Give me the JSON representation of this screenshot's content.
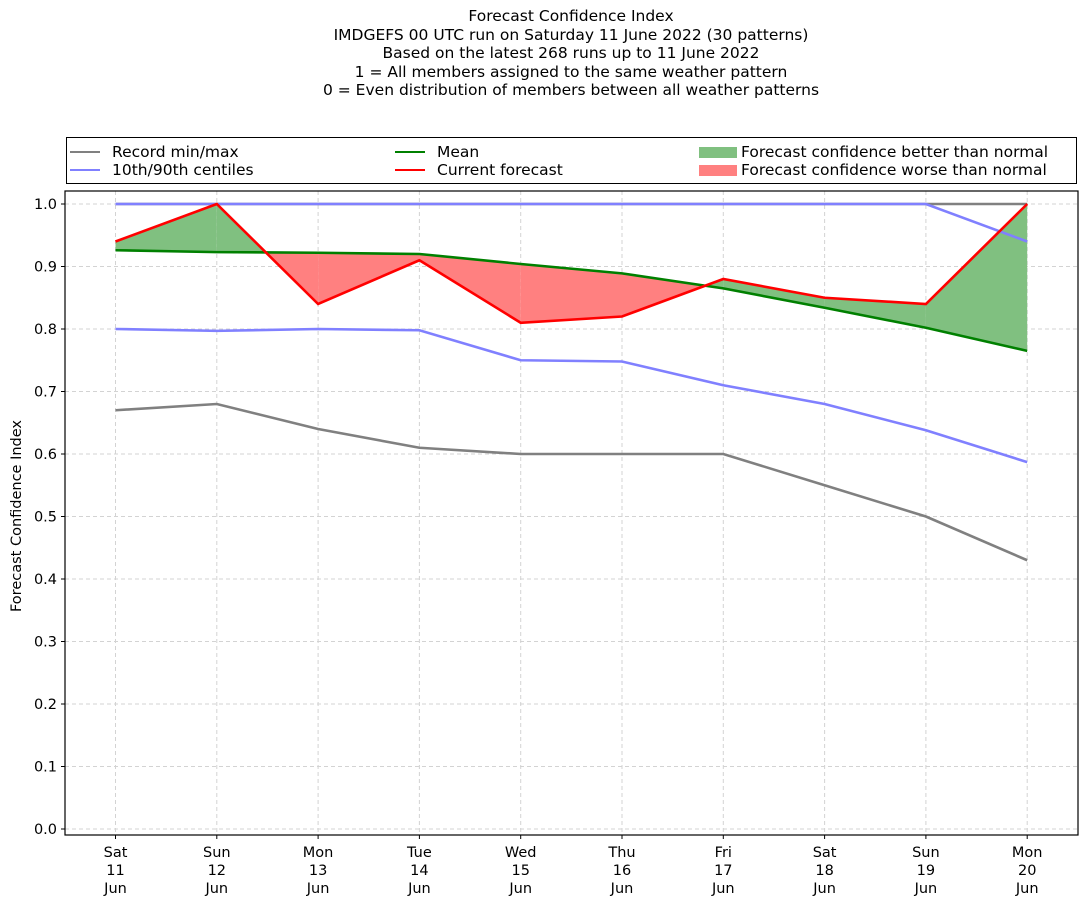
{
  "chart_data": {
    "type": "line",
    "title_lines": [
      "Forecast Confidence Index",
      "IMDGEFS 00 UTC run on Saturday 11 June 2022 (30 patterns)",
      "Based on the latest 268 runs up to 11 June 2022",
      "1 = All members assigned to the same weather pattern",
      "0 = Even distribution of members between all weather patterns"
    ],
    "xlabel": "",
    "ylabel": "Forecast Confidence Index",
    "ylim": [
      0.0,
      1.0
    ],
    "yticks": [
      "0.0",
      "0.1",
      "0.2",
      "0.3",
      "0.4",
      "0.5",
      "0.6",
      "0.7",
      "0.8",
      "0.9",
      "1.0"
    ],
    "grid": true,
    "legend_position": "top (above plot, 3 columns)",
    "categories": [
      {
        "day": "Sat",
        "date": "11",
        "month": "Jun"
      },
      {
        "day": "Sun",
        "date": "12",
        "month": "Jun"
      },
      {
        "day": "Mon",
        "date": "13",
        "month": "Jun"
      },
      {
        "day": "Tue",
        "date": "14",
        "month": "Jun"
      },
      {
        "day": "Wed",
        "date": "15",
        "month": "Jun"
      },
      {
        "day": "Thu",
        "date": "16",
        "month": "Jun"
      },
      {
        "day": "Fri",
        "date": "17",
        "month": "Jun"
      },
      {
        "day": "Sat",
        "date": "18",
        "month": "Jun"
      },
      {
        "day": "Sun",
        "date": "19",
        "month": "Jun"
      },
      {
        "day": "Mon",
        "date": "20",
        "month": "Jun"
      }
    ],
    "series": [
      {
        "name": "Record max",
        "legend_group": "Record min/max",
        "color": "#808080",
        "values": [
          1.0,
          1.0,
          1.0,
          1.0,
          1.0,
          1.0,
          1.0,
          1.0,
          1.0,
          1.0
        ]
      },
      {
        "name": "Record min",
        "legend_group": "Record min/max",
        "color": "#808080",
        "values": [
          0.67,
          0.68,
          0.64,
          0.61,
          0.6,
          0.6,
          0.6,
          0.55,
          0.5,
          0.43
        ]
      },
      {
        "name": "90th centile",
        "legend_group": "10th/90th centiles",
        "color": "#8080ff",
        "values": [
          1.0,
          1.0,
          1.0,
          1.0,
          1.0,
          1.0,
          1.0,
          1.0,
          1.0,
          0.94
        ]
      },
      {
        "name": "10th centile",
        "legend_group": "10th/90th centiles",
        "color": "#8080ff",
        "values": [
          0.8,
          0.797,
          0.8,
          0.798,
          0.75,
          0.748,
          0.71,
          0.68,
          0.638,
          0.587
        ]
      },
      {
        "name": "Mean",
        "color": "#008000",
        "values": [
          0.926,
          0.923,
          0.922,
          0.92,
          0.904,
          0.889,
          0.865,
          0.834,
          0.802,
          0.765
        ]
      },
      {
        "name": "Current forecast",
        "color": "#ff0000",
        "values": [
          0.94,
          1.0,
          0.84,
          0.91,
          0.81,
          0.82,
          0.88,
          0.85,
          0.84,
          1.0
        ]
      }
    ],
    "fills": [
      {
        "name": "Forecast confidence better than normal",
        "color": "#80c080",
        "condition": "current > mean"
      },
      {
        "name": "Forecast confidence worse than normal",
        "color": "#ff8080",
        "condition": "current < mean"
      }
    ],
    "legend": [
      {
        "label": "Record min/max",
        "kind": "line",
        "color": "#808080"
      },
      {
        "label": "10th/90th centiles",
        "kind": "line",
        "color": "#8080ff"
      },
      {
        "label": "Mean",
        "kind": "line",
        "color": "#008000"
      },
      {
        "label": "Current forecast",
        "kind": "line",
        "color": "#ff0000"
      },
      {
        "label": "Forecast confidence better than normal",
        "kind": "patch",
        "color": "#80c080"
      },
      {
        "label": "Forecast confidence worse than normal",
        "kind": "patch",
        "color": "#ff8080"
      }
    ]
  }
}
